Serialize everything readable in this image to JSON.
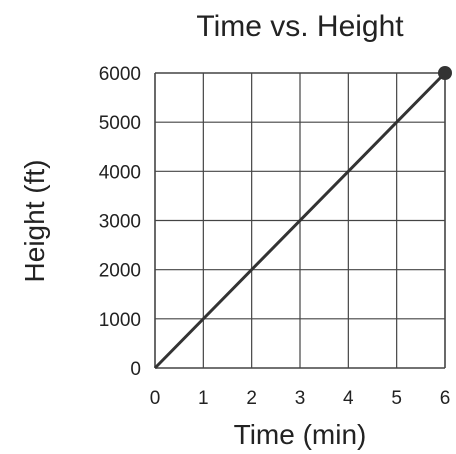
{
  "chart_data": {
    "type": "line",
    "title": "Time vs. Height",
    "xlabel": "Time (min)",
    "ylabel": "Height (ft)",
    "xlim": [
      0,
      6
    ],
    "ylim": [
      0,
      6000
    ],
    "grid": true,
    "x_ticks": [
      "0",
      "1",
      "2",
      "3",
      "4",
      "5",
      "6"
    ],
    "y_ticks": [
      "0",
      "1000",
      "2000",
      "3000",
      "4000",
      "5000",
      "6000"
    ],
    "series": [
      {
        "x": [
          0,
          6
        ],
        "y": [
          0,
          6000
        ],
        "end_marker": "filled-circle"
      }
    ],
    "colors": {
      "line": "#333333",
      "grid": "#444444",
      "text": "#222222"
    }
  }
}
